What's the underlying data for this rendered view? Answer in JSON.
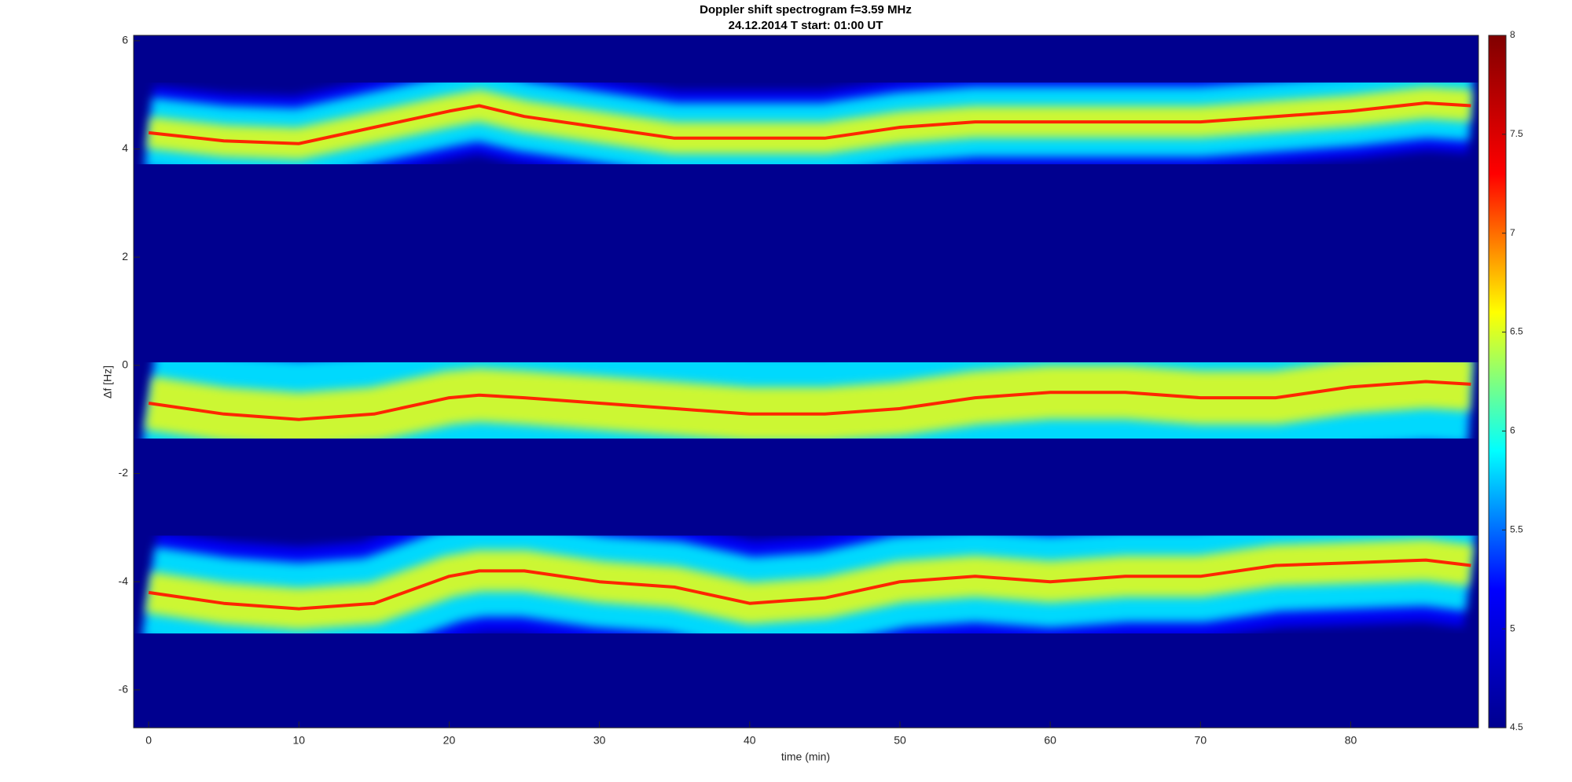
{
  "chart_data": {
    "type": "spectrogram",
    "title": "Doppler shift spectrogram f=3.59 MHz",
    "subtitle": "24.12.2014    T start: 01:00 UT",
    "x_label": "time (min)",
    "y_label": "Δf [Hz]",
    "xlim": [
      -1,
      88.5
    ],
    "xticks": [
      0,
      10,
      20,
      30,
      40,
      50,
      60,
      70,
      80
    ],
    "ylim": [
      -6.7,
      6.1
    ],
    "yticks": [
      -6,
      -4,
      -2,
      0,
      2,
      4,
      6
    ],
    "x": [
      0,
      5,
      10,
      15,
      20,
      22,
      25,
      30,
      35,
      40,
      45,
      50,
      55,
      60,
      65,
      70,
      75,
      80,
      85,
      88
    ],
    "series": [
      {
        "color": "#ff1a00",
        "values": [
          4.3,
          4.15,
          4.1,
          4.4,
          4.7,
          4.8,
          4.6,
          4.4,
          4.2,
          4.2,
          4.2,
          4.4,
          4.5,
          4.5,
          4.5,
          4.5,
          4.6,
          4.7,
          4.85,
          4.8
        ]
      },
      {
        "color": "#ff1a00",
        "values": [
          -0.7,
          -0.9,
          -1.0,
          -0.9,
          -0.6,
          -0.55,
          -0.6,
          -0.7,
          -0.8,
          -0.9,
          -0.9,
          -0.8,
          -0.6,
          -0.5,
          -0.5,
          -0.6,
          -0.6,
          -0.4,
          -0.3,
          -0.35
        ]
      },
      {
        "color": "#ff1a00",
        "values": [
          -4.2,
          -4.4,
          -4.5,
          -4.4,
          -3.9,
          -3.8,
          -3.8,
          -4.0,
          -4.1,
          -4.4,
          -4.3,
          -4.0,
          -3.9,
          -4.0,
          -3.9,
          -3.9,
          -3.7,
          -3.65,
          -3.6,
          -3.7
        ]
      }
    ],
    "colormap": [
      "#00008f",
      "#0000ff",
      "#00ffff",
      "#ffff00",
      "#ff0000",
      "#800000"
    ],
    "clim": [
      4.5,
      8
    ],
    "cticks": [
      4.5,
      5,
      5.5,
      6,
      6.5,
      7,
      7.5,
      8
    ]
  }
}
